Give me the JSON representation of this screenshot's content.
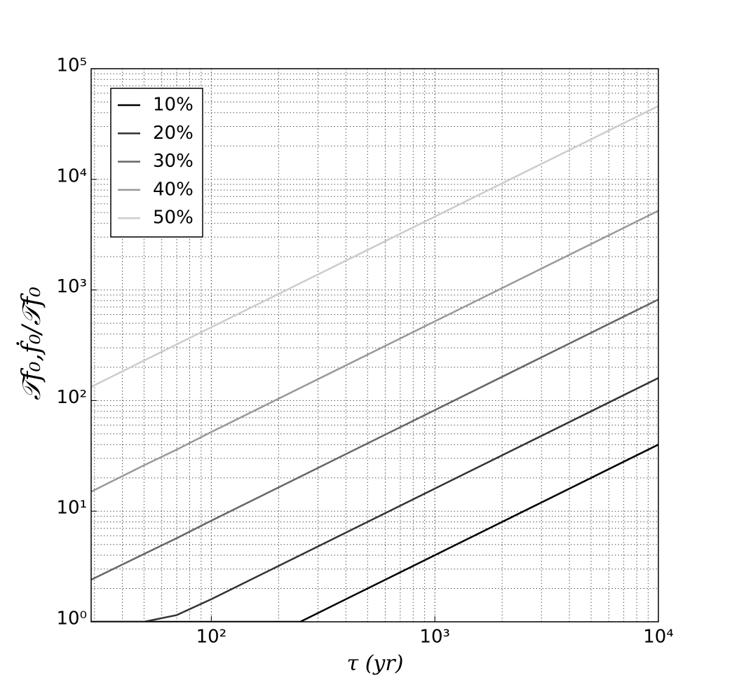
{
  "chart_data": {
    "type": "line",
    "x_label": "τ (yr)",
    "y_label": "𝒯f₀,ḟ₀/𝒯f₀",
    "x": [
      29,
      50,
      70,
      100,
      250,
      1000,
      3000,
      10000
    ],
    "series": [
      {
        "name": "10%",
        "color": "#000000",
        "values": [
          1,
          1,
          1,
          1,
          1,
          4,
          12,
          40
        ]
      },
      {
        "name": "20%",
        "color": "#333333",
        "values": [
          1,
          1,
          1.15,
          1.6,
          4,
          16,
          48,
          160
        ]
      },
      {
        "name": "30%",
        "color": "#666666",
        "values": [
          2.4,
          4.1,
          5.7,
          8.2,
          20.5,
          82,
          246,
          820
        ]
      },
      {
        "name": "40%",
        "color": "#999999",
        "values": [
          15,
          26,
          36,
          52,
          130,
          520,
          1560,
          5200
        ]
      },
      {
        "name": "50%",
        "color": "#cccccc",
        "values": [
          133,
          230,
          322,
          460,
          1150,
          4600,
          13800,
          46000
        ]
      }
    ],
    "xlim": [
      29,
      10000
    ],
    "ylim": [
      1,
      100000
    ],
    "xticks": [
      {
        "value": 100,
        "label": "10²"
      },
      {
        "value": 1000,
        "label": "10³"
      },
      {
        "value": 10000,
        "label": "10⁴"
      }
    ],
    "yticks": [
      {
        "value": 1,
        "label": "10⁰"
      },
      {
        "value": 10,
        "label": "10¹"
      },
      {
        "value": 100,
        "label": "10²"
      },
      {
        "value": 1000,
        "label": "10³"
      },
      {
        "value": 10000,
        "label": "10⁴"
      },
      {
        "value": 100000,
        "label": "10⁵"
      }
    ],
    "xscale": "log",
    "yscale": "log",
    "grid": true,
    "legend": "upper left"
  }
}
